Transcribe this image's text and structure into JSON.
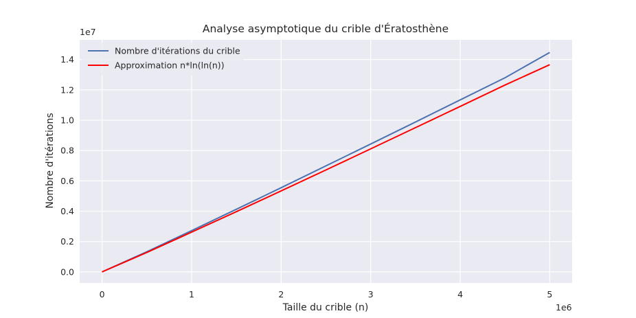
{
  "chart_data": {
    "type": "line",
    "title": "Analyse asymptotique du crible d'Ératosthène",
    "xlabel": "Taille du crible (n)",
    "ylabel": "Nombre d'itérations",
    "x_offset_label": "1e6",
    "y_offset_label": "1e7",
    "xlim": [
      -0.25,
      5.25
    ],
    "ylim": [
      -0.073,
      1.53
    ],
    "x_ticks": [
      0,
      1,
      2,
      3,
      4,
      5
    ],
    "y_ticks": [
      0.0,
      0.2,
      0.4,
      0.6,
      0.8,
      1.0,
      1.2,
      1.4
    ],
    "x_tick_labels": [
      "0",
      "1",
      "2",
      "3",
      "4",
      "5"
    ],
    "y_tick_labels": [
      "0.0",
      "0.2",
      "0.4",
      "0.6",
      "0.8",
      "1.0",
      "1.2",
      "1.4"
    ],
    "grid": true,
    "legend_position": "top-left",
    "series": [
      {
        "name": "Nombre d'itérations du crible",
        "color": "#4c72b0",
        "x": [
          0,
          0.5,
          1,
          1.5,
          2,
          2.5,
          3,
          3.5,
          4,
          4.5,
          5
        ],
        "y": [
          0,
          0.133,
          0.272,
          0.413,
          0.555,
          0.699,
          0.843,
          0.988,
          1.134,
          1.28,
          1.447
        ]
      },
      {
        "name": "Approximation n*ln(ln(n))",
        "color": "#ff0000",
        "x": [
          0,
          0.5,
          1,
          1.5,
          2,
          2.5,
          3,
          3.5,
          4,
          4.5,
          5
        ],
        "y": [
          0,
          0.128,
          0.262,
          0.397,
          0.534,
          0.672,
          0.811,
          0.951,
          1.091,
          1.232,
          1.366
        ]
      }
    ]
  }
}
